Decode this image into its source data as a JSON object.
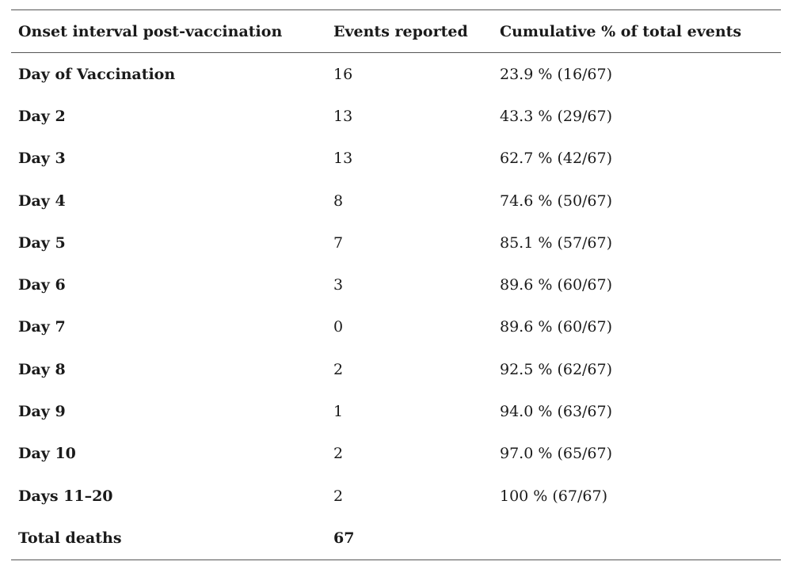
{
  "table": {
    "headers": [
      "Onset interval post-vaccination",
      "Events reported",
      "Cumulative % of total events"
    ],
    "rows": [
      {
        "interval": "Day of Vaccination",
        "events": "16",
        "cumulative": "23.9 % (16/67)"
      },
      {
        "interval": "Day 2",
        "events": "13",
        "cumulative": "43.3 % (29/67)"
      },
      {
        "interval": "Day 3",
        "events": "13",
        "cumulative": "62.7 % (42/67)"
      },
      {
        "interval": "Day 4",
        "events": "8",
        "cumulative": "74.6 % (50/67)"
      },
      {
        "interval": "Day 5",
        "events": "7",
        "cumulative": "85.1 % (57/67)"
      },
      {
        "interval": "Day 6",
        "events": "3",
        "cumulative": "89.6 % (60/67)"
      },
      {
        "interval": "Day 7",
        "events": "0",
        "cumulative": "89.6 % (60/67)"
      },
      {
        "interval": "Day 8",
        "events": "2",
        "cumulative": "92.5 % (62/67)"
      },
      {
        "interval": "Day 9",
        "events": "1",
        "cumulative": "94.0 % (63/67)"
      },
      {
        "interval": "Day 10",
        "events": "2",
        "cumulative": "97.0 % (65/67)"
      },
      {
        "interval": "Days 11–20",
        "events": "2",
        "cumulative": "100 % (67/67)"
      }
    ],
    "total": {
      "label": "Total deaths",
      "events": "67",
      "cumulative": ""
    }
  }
}
